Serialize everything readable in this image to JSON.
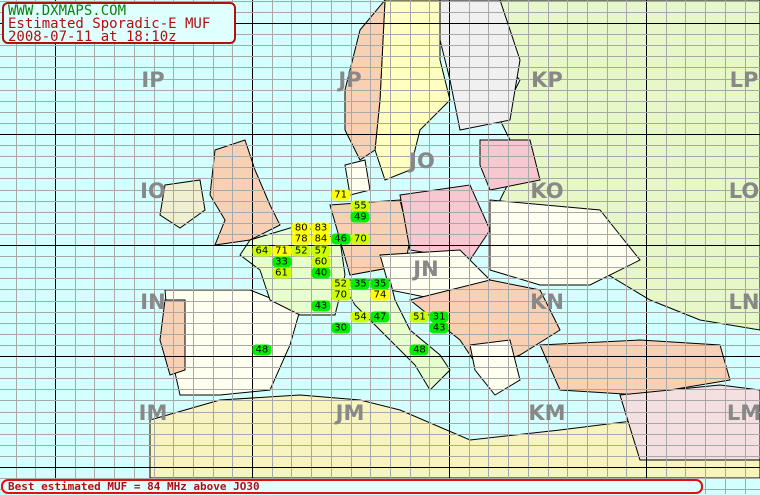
{
  "header": {
    "site": "WWW.DXMAPS.COM",
    "title": "Estimated Sporadic-E MUF",
    "timestamp": "2008-07-11 at 18:10z"
  },
  "footer": {
    "text": "Best estimated MUF = 84 MHz above JO30"
  },
  "colors": {
    "sea": "#d4ffff",
    "grid_minor": "#a8a8a8",
    "grid_major": "#000000",
    "high": "#ffff00",
    "mid": "#ccff00",
    "low": "#00ee00",
    "frame": "#b01010"
  },
  "fields": [
    {
      "label": "IP",
      "col": 0,
      "row": 0
    },
    {
      "label": "JP",
      "col": 1,
      "row": 0
    },
    {
      "label": "KP",
      "col": 2,
      "row": 0
    },
    {
      "label": "LP",
      "col": 3,
      "row": 0
    },
    {
      "label": "IO",
      "col": 0,
      "row": 1
    },
    {
      "label": "JO",
      "col": 1,
      "row": 1
    },
    {
      "label": "KO",
      "col": 2,
      "row": 1
    },
    {
      "label": "LO",
      "col": 3,
      "row": 1
    },
    {
      "label": "IN",
      "col": 0,
      "row": 2
    },
    {
      "label": "JN",
      "col": 1,
      "row": 2
    },
    {
      "label": "KN",
      "col": 2,
      "row": 2
    },
    {
      "label": "LN",
      "col": 3,
      "row": 2
    },
    {
      "label": "IM",
      "col": 0,
      "row": 3
    },
    {
      "label": "JM",
      "col": 1,
      "row": 3
    },
    {
      "label": "KM",
      "col": 2,
      "row": 3
    },
    {
      "label": "LM",
      "col": 3,
      "row": 3
    }
  ],
  "muf_points": [
    {
      "value": "71",
      "level": "high",
      "lon": 9,
      "lat": 54.5
    },
    {
      "value": "55",
      "level": "mid",
      "lon": 11,
      "lat": 53.5
    },
    {
      "value": "49",
      "level": "low",
      "lon": 11,
      "lat": 52.5
    },
    {
      "value": "80",
      "level": "high",
      "lon": 5,
      "lat": 51.5
    },
    {
      "value": "83",
      "level": "high",
      "lon": 7,
      "lat": 51.5
    },
    {
      "value": "78",
      "level": "high",
      "lon": 5,
      "lat": 50.5
    },
    {
      "value": "84",
      "level": "high",
      "lon": 7,
      "lat": 50.5
    },
    {
      "value": "46",
      "level": "low",
      "lon": 9,
      "lat": 50.5
    },
    {
      "value": "70",
      "level": "mid",
      "lon": 11,
      "lat": 50.5
    },
    {
      "value": "64",
      "level": "mid",
      "lon": 1,
      "lat": 49.5
    },
    {
      "value": "71",
      "level": "high",
      "lon": 3,
      "lat": 49.5
    },
    {
      "value": "52",
      "level": "mid",
      "lon": 5,
      "lat": 49.5
    },
    {
      "value": "57",
      "level": "mid",
      "lon": 7,
      "lat": 49.5
    },
    {
      "value": "33",
      "level": "low",
      "lon": 3,
      "lat": 48.5
    },
    {
      "value": "60",
      "level": "mid",
      "lon": 7,
      "lat": 48.5
    },
    {
      "value": "61",
      "level": "mid",
      "lon": 3,
      "lat": 47.5
    },
    {
      "value": "40",
      "level": "low",
      "lon": 7,
      "lat": 47.5
    },
    {
      "value": "52",
      "level": "mid",
      "lon": 9,
      "lat": 46.5
    },
    {
      "value": "35",
      "level": "low",
      "lon": 11,
      "lat": 46.5
    },
    {
      "value": "35",
      "level": "low",
      "lon": 13,
      "lat": 46.5
    },
    {
      "value": "70",
      "level": "mid",
      "lon": 9,
      "lat": 45.5
    },
    {
      "value": "74",
      "level": "high",
      "lon": 13,
      "lat": 45.5
    },
    {
      "value": "43",
      "level": "low",
      "lon": 7,
      "lat": 44.5
    },
    {
      "value": "54",
      "level": "mid",
      "lon": 11,
      "lat": 43.5
    },
    {
      "value": "47",
      "level": "low",
      "lon": 13,
      "lat": 43.5
    },
    {
      "value": "51",
      "level": "mid",
      "lon": 17,
      "lat": 43.5
    },
    {
      "value": "31",
      "level": "low",
      "lon": 19,
      "lat": 43.5
    },
    {
      "value": "43",
      "level": "low",
      "lon": 19,
      "lat": 42.5
    },
    {
      "value": "30",
      "level": "low",
      "lon": 9,
      "lat": 42.5
    },
    {
      "value": "48",
      "level": "low",
      "lon": 1,
      "lat": 40.5
    },
    {
      "value": "48",
      "level": "low",
      "lon": 17,
      "lat": 40.5
    }
  ]
}
